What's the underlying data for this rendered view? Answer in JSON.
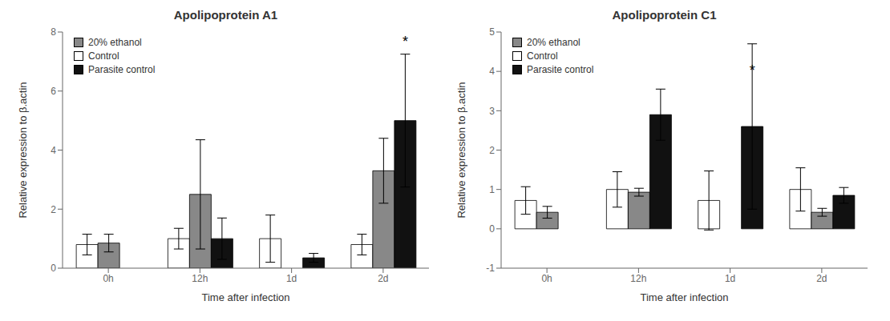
{
  "chart_data": [
    {
      "type": "bar",
      "title": "Apolipoprotein A1",
      "x_label": "Time after infection",
      "y_label": "Relative expression to  β.actin",
      "categories": [
        "0h",
        "12h",
        "1d",
        "2d"
      ],
      "series": [
        {
          "name": "Control",
          "color": "#ffffff",
          "values": [
            0.8,
            1.0,
            1.0,
            0.8
          ],
          "errors": [
            0.35,
            0.35,
            0.8,
            0.35
          ]
        },
        {
          "name": "20% ethanol",
          "color": "#888888",
          "values": [
            0.85,
            2.5,
            null,
            3.3
          ],
          "errors": [
            0.3,
            1.85,
            null,
            1.1
          ]
        },
        {
          "name": "Parasite control",
          "color": "#111111",
          "values": [
            null,
            1.0,
            0.35,
            5.0
          ],
          "errors": [
            null,
            0.7,
            0.15,
            2.25
          ]
        }
      ],
      "ylim": [
        0,
        8
      ],
      "yticks": [
        0,
        2,
        4,
        6,
        8
      ],
      "legend": "upper left",
      "annotations": [
        {
          "text": "*",
          "category": "2d",
          "series": "Parasite control",
          "y": 7.5
        }
      ]
    },
    {
      "type": "bar",
      "title": "Apolipoprotein C1",
      "x_label": "Time after infection",
      "y_label": "Relative expression to  β.actin",
      "categories": [
        "0h",
        "12h",
        "1d",
        "2d"
      ],
      "series": [
        {
          "name": "Control",
          "color": "#ffffff",
          "values": [
            0.72,
            1.0,
            0.72,
            1.0
          ],
          "errors": [
            0.35,
            0.45,
            0.75,
            0.55
          ]
        },
        {
          "name": "20% ethanol",
          "color": "#888888",
          "values": [
            0.42,
            0.93,
            null,
            0.42
          ],
          "errors": [
            0.15,
            0.1,
            null,
            0.1
          ]
        },
        {
          "name": "Parasite control",
          "color": "#111111",
          "values": [
            null,
            2.9,
            2.6,
            0.85
          ],
          "errors": [
            null,
            0.65,
            2.1,
            0.2
          ]
        }
      ],
      "ylim": [
        -1,
        5
      ],
      "yticks": [
        -1,
        0,
        1,
        2,
        3,
        4,
        5
      ],
      "legend": "upper left",
      "annotations": [
        {
          "text": "*",
          "category": "1d",
          "series": "Parasite control",
          "y": 3.9
        }
      ]
    }
  ]
}
